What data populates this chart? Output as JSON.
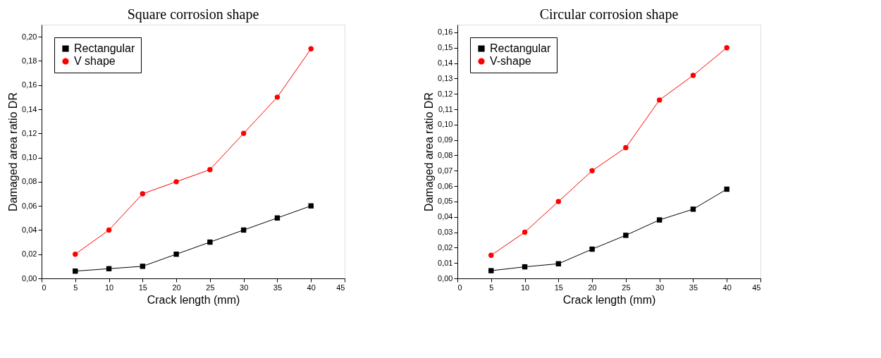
{
  "chart_data": [
    {
      "type": "line",
      "title": "Square corrosion shape",
      "xlabel": "Crack length (mm)",
      "ylabel": "Damaged area ratio DR",
      "x": [
        5,
        10,
        15,
        20,
        25,
        30,
        35,
        40
      ],
      "series": [
        {
          "name": "Rectangular",
          "color": "#000000",
          "marker": "square",
          "values": [
            0.006,
            0.008,
            0.01,
            0.02,
            0.03,
            0.04,
            0.05,
            0.06
          ]
        },
        {
          "name": "V shape",
          "color": "#ff0000",
          "marker": "circle",
          "values": [
            0.02,
            0.04,
            0.07,
            0.08,
            0.09,
            0.12,
            0.15,
            0.19
          ]
        }
      ],
      "xlim": [
        0,
        45
      ],
      "xticks": [
        0,
        5,
        10,
        15,
        20,
        25,
        30,
        35,
        40,
        45
      ],
      "ylim": [
        0,
        0.21
      ],
      "yticks": [
        {
          "value": 0,
          "label": "0,00"
        },
        {
          "value": 0.02,
          "label": "0,02"
        },
        {
          "value": 0.04,
          "label": "0,04"
        },
        {
          "value": 0.06,
          "label": "0,06"
        },
        {
          "value": 0.08,
          "label": "0,08"
        },
        {
          "value": 0.1,
          "label": "0,10"
        },
        {
          "value": 0.12,
          "label": "0,12"
        },
        {
          "value": 0.14,
          "label": "0,14"
        },
        {
          "value": 0.16,
          "label": "0,16"
        },
        {
          "value": 0.18,
          "label": "0,18"
        },
        {
          "value": 0.2,
          "label": "0,20"
        }
      ],
      "grid": false,
      "legend": "top left"
    },
    {
      "type": "line",
      "title": "Circular corrosion shape",
      "xlabel": "Crack length (mm)",
      "ylabel": "Damaged area ratio DR",
      "x": [
        5,
        10,
        15,
        20,
        25,
        30,
        35,
        40
      ],
      "series": [
        {
          "name": "Rectangular",
          "color": "#000000",
          "marker": "square",
          "values": [
            0.005,
            0.0075,
            0.0095,
            0.019,
            0.028,
            0.038,
            0.045,
            0.058
          ]
        },
        {
          "name": "V-shape",
          "color": "#ff0000",
          "marker": "circle",
          "values": [
            0.015,
            0.03,
            0.05,
            0.07,
            0.085,
            0.116,
            0.132,
            0.15
          ]
        }
      ],
      "xlim": [
        0,
        45
      ],
      "xticks": [
        0,
        5,
        10,
        15,
        20,
        25,
        30,
        35,
        40,
        45
      ],
      "ylim": [
        0,
        0.165
      ],
      "yticks": [
        {
          "value": 0,
          "label": "0,00"
        },
        {
          "value": 0.01,
          "label": "0,01"
        },
        {
          "value": 0.02,
          "label": "0,02"
        },
        {
          "value": 0.03,
          "label": "0,03"
        },
        {
          "value": 0.04,
          "label": "0,04"
        },
        {
          "value": 0.05,
          "label": "0,05"
        },
        {
          "value": 0.06,
          "label": "0,06"
        },
        {
          "value": 0.07,
          "label": "0,07"
        },
        {
          "value": 0.08,
          "label": "0,08"
        },
        {
          "value": 0.09,
          "label": "0,09"
        },
        {
          "value": 0.1,
          "label": "0,10"
        },
        {
          "value": 0.11,
          "label": "0,11"
        },
        {
          "value": 0.12,
          "label": "0,12"
        },
        {
          "value": 0.13,
          "label": "0,13"
        },
        {
          "value": 0.14,
          "label": "0,14"
        },
        {
          "value": 0.15,
          "label": "0,15"
        },
        {
          "value": 0.16,
          "label": "0,16"
        }
      ],
      "grid": false,
      "legend": "top left"
    }
  ]
}
